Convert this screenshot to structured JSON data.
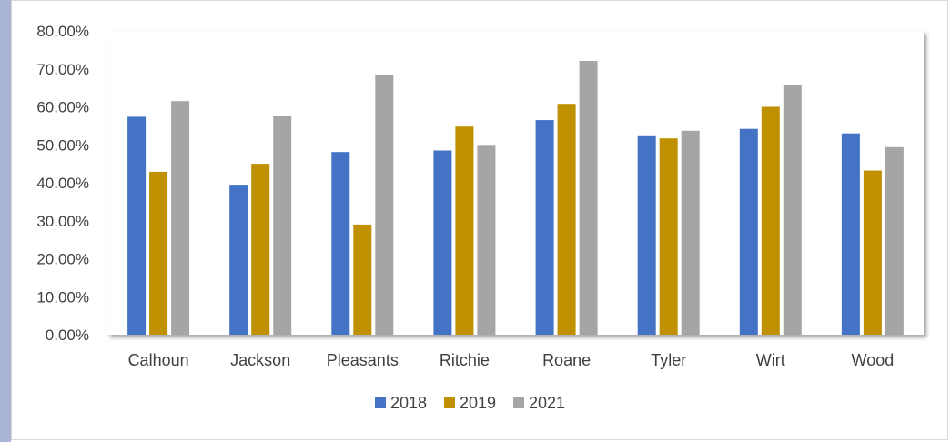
{
  "chart_data": {
    "type": "bar",
    "categories": [
      "Calhoun",
      "Jackson",
      "Pleasants",
      "Ritchie",
      "Roane",
      "Tyler",
      "Wirt",
      "Wood"
    ],
    "series": [
      {
        "name": "2018",
        "color": "#4472c4",
        "values": [
          57.4,
          39.5,
          48.1,
          48.5,
          56.5,
          52.5,
          54.2,
          53.0
        ]
      },
      {
        "name": "2019",
        "color": "#bf9000",
        "values": [
          42.9,
          45.0,
          29.0,
          54.8,
          60.8,
          51.7,
          60.0,
          43.2
        ]
      },
      {
        "name": "2021",
        "color": "#a5a5a5",
        "values": [
          61.5,
          57.7,
          68.4,
          50.0,
          72.1,
          53.7,
          65.8,
          49.4
        ]
      }
    ],
    "yticks": [
      "0.00%",
      "10.00%",
      "20.00%",
      "30.00%",
      "40.00%",
      "50.00%",
      "60.00%",
      "70.00%",
      "80.00%"
    ],
    "ylim": [
      0,
      80
    ],
    "title": "",
    "xlabel": "",
    "ylabel": "",
    "legend_position": "bottom",
    "grid": false
  }
}
